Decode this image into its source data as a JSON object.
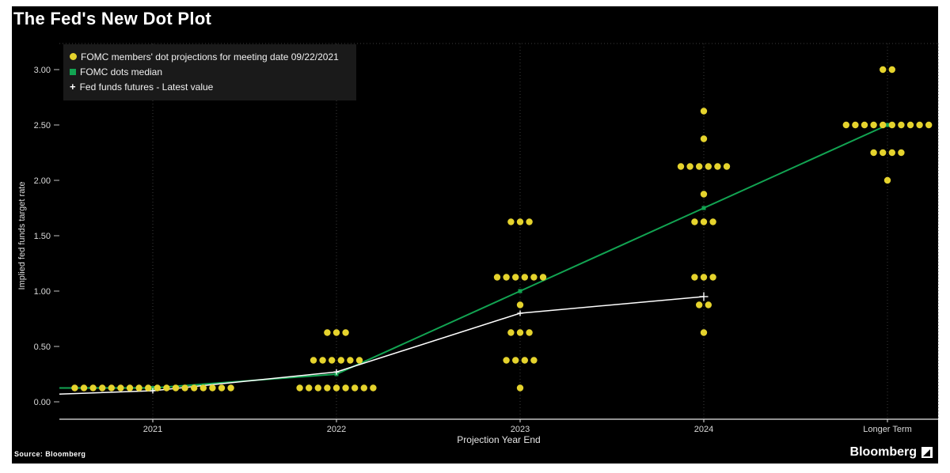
{
  "header": {
    "title": "The Fed's New Dot Plot"
  },
  "legend": {
    "items": [
      {
        "marker": "circle",
        "color": "#e5d32d",
        "label": "FOMC members' dot projections for meeting date 09/22/2021"
      },
      {
        "marker": "square",
        "color": "#12a452",
        "label": "FOMC dots median"
      },
      {
        "marker": "plus",
        "color": "#ffffff",
        "label": "Fed funds futures - Latest value"
      }
    ]
  },
  "axes": {
    "x_title": "Projection Year End",
    "y_title": "Implied fed funds target rate"
  },
  "footer": {
    "source": "Source: Bloomberg",
    "brand": "Bloomberg"
  },
  "chart_data": {
    "type": "scatter",
    "title": "The Fed's New Dot Plot",
    "xlabel": "Projection Year End",
    "ylabel": "Implied fed funds target rate",
    "categories": [
      "2021",
      "2022",
      "2023",
      "2024",
      "Longer Term"
    ],
    "y_ticks": [
      "0.00",
      "0.50",
      "1.00",
      "1.50",
      "2.00",
      "2.50",
      "3.00"
    ],
    "ylim": [
      -0.15,
      3.25
    ],
    "grid": "dotted-vertical",
    "background": "#000000",
    "dot_color": "#e5d32d",
    "grid_color": "#3c3c3c",
    "axis_color": "#e8e8e8",
    "tick_text_color": "#d9d9d9",
    "dots": [
      {
        "category": "2021",
        "rate": 0.125,
        "count": 18
      },
      {
        "category": "2022",
        "rate": 0.125,
        "count": 9
      },
      {
        "category": "2022",
        "rate": 0.375,
        "count": 6
      },
      {
        "category": "2022",
        "rate": 0.625,
        "count": 3
      },
      {
        "category": "2023",
        "rate": 0.125,
        "count": 1
      },
      {
        "category": "2023",
        "rate": 0.375,
        "count": 4
      },
      {
        "category": "2023",
        "rate": 0.625,
        "count": 3
      },
      {
        "category": "2023",
        "rate": 0.875,
        "count": 1
      },
      {
        "category": "2023",
        "rate": 1.125,
        "count": 6
      },
      {
        "category": "2023",
        "rate": 1.625,
        "count": 3
      },
      {
        "category": "2024",
        "rate": 0.625,
        "count": 1
      },
      {
        "category": "2024",
        "rate": 0.875,
        "count": 2
      },
      {
        "category": "2024",
        "rate": 1.125,
        "count": 3
      },
      {
        "category": "2024",
        "rate": 1.625,
        "count": 3
      },
      {
        "category": "2024",
        "rate": 1.875,
        "count": 1
      },
      {
        "category": "2024",
        "rate": 2.125,
        "count": 6
      },
      {
        "category": "2024",
        "rate": 2.375,
        "count": 1
      },
      {
        "category": "2024",
        "rate": 2.625,
        "count": 1
      },
      {
        "category": "Longer Term",
        "rate": 2.0,
        "count": 1
      },
      {
        "category": "Longer Term",
        "rate": 2.25,
        "count": 4
      },
      {
        "category": "Longer Term",
        "rate": 2.5,
        "count": 10
      },
      {
        "category": "Longer Term",
        "rate": 3.0,
        "count": 2
      }
    ],
    "series": [
      {
        "name": "FOMC dots median",
        "type": "line",
        "marker": "square",
        "color": "#12a452",
        "width": 2,
        "x": [
          "start",
          "2021",
          "2022",
          "2023",
          "2024",
          "Longer Term"
        ],
        "values": [
          0.125,
          0.125,
          0.25,
          1.0,
          1.75,
          2.5
        ]
      },
      {
        "name": "Fed funds futures - Latest value",
        "type": "line",
        "marker": "plus",
        "color": "#ffffff",
        "width": 1.5,
        "x": [
          "start",
          "2021",
          "2022",
          "2023",
          "2024"
        ],
        "values": [
          0.07,
          0.1,
          0.27,
          0.8,
          0.95
        ]
      }
    ]
  }
}
